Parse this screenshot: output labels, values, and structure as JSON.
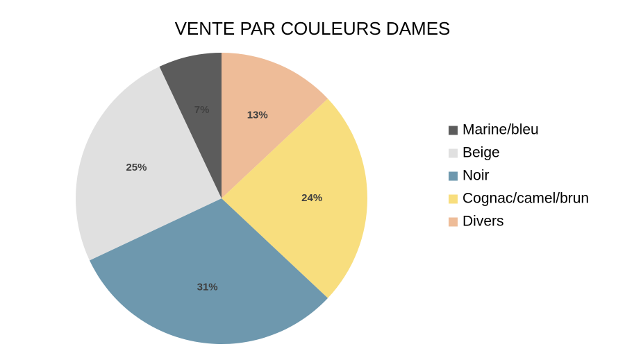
{
  "chart_data": {
    "type": "pie",
    "title": "VENTE PAR COULEURS DAMES",
    "start_angle_deg": 0,
    "direction": "clockwise",
    "slices": [
      {
        "label": "Divers",
        "value": 13,
        "value_label": "13%",
        "color": "#EEBC98"
      },
      {
        "label": "Cognac/camel/brun",
        "value": 24,
        "value_label": "24%",
        "color": "#F8DE7E"
      },
      {
        "label": "Noir",
        "value": 31,
        "value_label": "31%",
        "color": "#6E98AE"
      },
      {
        "label": "Beige",
        "value": 25,
        "value_label": "25%",
        "color": "#E0E0E0"
      },
      {
        "label": "Marine/bleu",
        "value": 7,
        "value_label": "7%",
        "color": "#5C5C5C"
      }
    ],
    "legend": {
      "position": "right",
      "order": [
        "Marine/bleu",
        "Beige",
        "Noir",
        "Cognac/camel/brun",
        "Divers"
      ]
    },
    "data_labels": true
  }
}
